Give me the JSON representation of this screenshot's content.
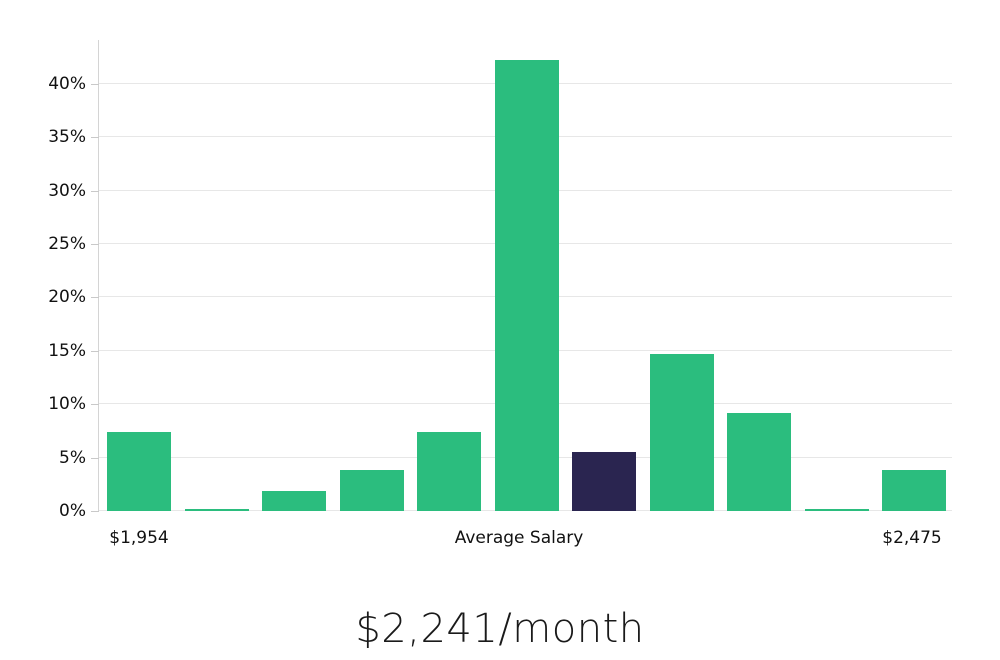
{
  "chart_data": {
    "type": "bar",
    "title": "$2,241/month",
    "y_axis": {
      "ticks": [
        0,
        5,
        10,
        15,
        20,
        25,
        30,
        35,
        40
      ],
      "tick_labels": [
        "0%",
        "5%",
        "10%",
        "15%",
        "20%",
        "25%",
        "30%",
        "35%",
        "40%"
      ],
      "max": 44.1,
      "grid": true
    },
    "x_axis": {
      "labels": {
        "left": "$1,954",
        "center": "Average Salary",
        "right": "$2,475"
      }
    },
    "bars": {
      "values": [
        7.4,
        0.2,
        1.9,
        3.8,
        7.4,
        42.2,
        5.5,
        14.7,
        9.2,
        0.2,
        3.8
      ],
      "highlight_index": 6
    },
    "colors": {
      "bar": "#2bbd7e",
      "highlight": "#2a2550",
      "grid": "#e7e7e7",
      "axis": "#d4d4d4",
      "tick": "#c9c9c9",
      "label": "#111111"
    },
    "legend_position": "none"
  }
}
